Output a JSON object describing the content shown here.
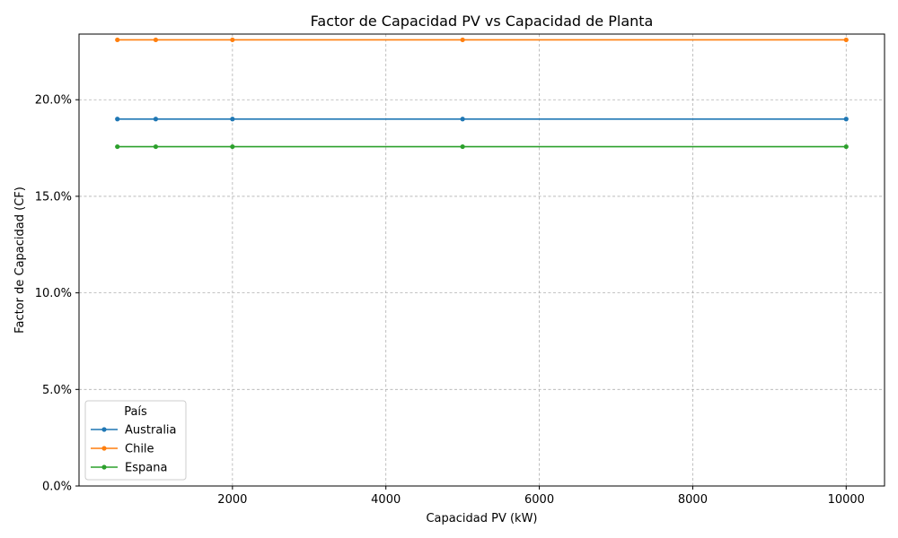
{
  "chart_data": {
    "type": "line",
    "title": "Factor de Capacidad PV vs Capacidad de Planta",
    "xlabel": "Capacidad PV (kW)",
    "ylabel": "Factor de Capacidad (CF)",
    "x": [
      500,
      1000,
      2000,
      5000,
      10000
    ],
    "xlim": [
      0,
      10500
    ],
    "ylim": [
      0,
      0.234
    ],
    "xticks": [
      2000,
      4000,
      6000,
      8000,
      10000
    ],
    "xtick_labels": [
      "2000",
      "4000",
      "6000",
      "8000",
      "10000"
    ],
    "yticks": [
      0,
      0.05,
      0.1,
      0.15,
      0.2
    ],
    "ytick_labels": [
      "0.0%",
      "5.0%",
      "10.0%",
      "15.0%",
      "20.0%"
    ],
    "grid": true,
    "legend": {
      "title": "País",
      "position": "lower-left"
    },
    "series": [
      {
        "name": "Australia",
        "color": "#1f77b4",
        "values": [
          0.19,
          0.19,
          0.19,
          0.19,
          0.19
        ]
      },
      {
        "name": "Chile",
        "color": "#ff7f0e",
        "values": [
          0.231,
          0.231,
          0.231,
          0.231,
          0.231
        ]
      },
      {
        "name": "Espana",
        "color": "#2ca02c",
        "values": [
          0.1757,
          0.1757,
          0.1757,
          0.1757,
          0.1757
        ]
      }
    ]
  }
}
